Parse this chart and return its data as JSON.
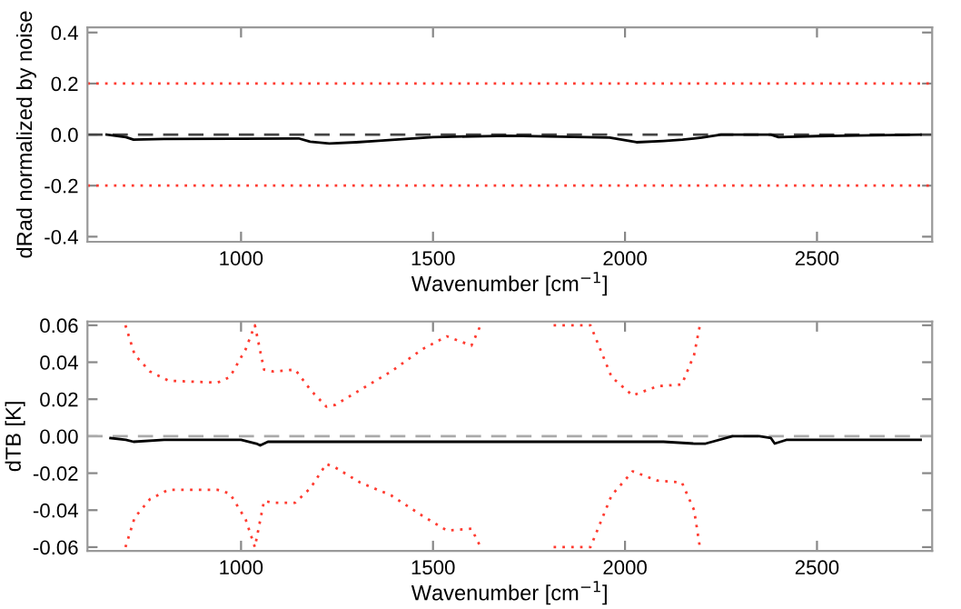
{
  "chart_data": [
    {
      "type": "line",
      "xlabel": "Wavenumber [cm$^{−1}$]",
      "ylabel": "dRad normalized by noise",
      "xlim": [
        600,
        2800
      ],
      "xticks": [
        1000,
        1500,
        2000,
        2500
      ],
      "ylim": [
        -0.42,
        0.42
      ],
      "yticks": [
        {
          "value": -0.4,
          "label": "-0.4"
        },
        {
          "value": -0.2,
          "label": "-0.2"
        },
        {
          "value": 0,
          "label": "0.0"
        },
        0.2,
        0.4
      ],
      "series": [
        {
          "color": "#000000",
          "line_style": "solid",
          "x": [
            650,
            700,
            720,
            800,
            1000,
            1150,
            1180,
            1230,
            1300,
            1350,
            1420,
            1500,
            1600,
            1700,
            1800,
            1900,
            1960,
            2030,
            2100,
            2150,
            2200,
            2250,
            2380,
            2400,
            2500,
            2600,
            2770
          ],
          "values": [
            0,
            -0.01,
            -0.02,
            -0.017,
            -0.016,
            -0.015,
            -0.028,
            -0.035,
            -0.03,
            -0.025,
            -0.018,
            -0.01,
            -0.007,
            -0.005,
            -0.007,
            -0.01,
            -0.012,
            -0.03,
            -0.025,
            -0.02,
            -0.012,
            0,
            0,
            -0.01,
            -0.006,
            -0.004,
            0
          ]
        }
      ],
      "ref_lines": [
        {
          "axis": "y",
          "value": 0.2,
          "color": "#ff3b30",
          "line_style": "dotted"
        },
        {
          "axis": "y",
          "value": -0.2,
          "color": "#ff3b30",
          "line_style": "dotted"
        },
        {
          "axis": "y",
          "value": 0,
          "color": "#444444",
          "line_style": "dashed"
        }
      ]
    },
    {
      "type": "line",
      "xlabel": "Wavenumber [cm$^{−1}$]",
      "ylabel": "dTB [K]",
      "xlim": [
        600,
        2800
      ],
      "xticks": [
        1000,
        1500,
        2000,
        2500
      ],
      "ylim": [
        -0.062,
        0.062
      ],
      "yticks": [
        {
          "value": -0.06,
          "label": "-0.06"
        },
        {
          "value": -0.04,
          "label": "-0.04"
        },
        {
          "value": -0.02,
          "label": "-0.02"
        },
        {
          "value": 0,
          "label": "0.00"
        },
        {
          "value": 0.02,
          "label": "0.02"
        },
        {
          "value": 0.04,
          "label": "0.04"
        },
        {
          "value": 0.06,
          "label": "0.06"
        }
      ],
      "series": [
        {
          "color": "#ff3b30",
          "line_style": "dotted",
          "x": [
            699,
            723,
            763,
            811,
            939,
            971,
            1012,
            1036,
            1060,
            1084,
            1141,
            1181,
            1222,
            1246,
            1310,
            1391,
            1472,
            1536,
            1600,
            1624,
            1700,
            1814,
            1910,
            1965,
            2020,
            2084,
            2148,
            2180,
            2195
          ],
          "values": [
            0.06,
            0.044,
            0.035,
            0.03,
            0.029,
            0.032,
            0.047,
            0.06,
            0.036,
            0.035,
            0.036,
            0.025,
            0.016,
            0.017,
            0.025,
            0.035,
            0.047,
            0.054,
            0.049,
            0.06,
            null,
            0.06,
            0.06,
            0.032,
            0.022,
            0.027,
            0.028,
            0.044,
            0.06
          ]
        },
        {
          "color": "#ff3b30",
          "line_style": "dotted",
          "x": [
            699,
            723,
            763,
            811,
            939,
            971,
            1012,
            1036,
            1060,
            1084,
            1141,
            1181,
            1222,
            1246,
            1310,
            1391,
            1472,
            1536,
            1600,
            1624,
            1700,
            1814,
            1910,
            1965,
            2020,
            2084,
            2148,
            2180,
            2195
          ],
          "values": [
            -0.06,
            -0.044,
            -0.034,
            -0.029,
            -0.029,
            -0.031,
            -0.045,
            -0.06,
            -0.035,
            -0.036,
            -0.036,
            -0.028,
            -0.015,
            -0.017,
            -0.025,
            -0.032,
            -0.043,
            -0.051,
            -0.05,
            -0.06,
            null,
            -0.06,
            -0.06,
            -0.032,
            -0.019,
            -0.024,
            -0.025,
            -0.04,
            -0.06
          ]
        },
        {
          "color": "#000000",
          "line_style": "solid",
          "x": [
            660,
            700,
            720,
            800,
            1000,
            1040,
            1050,
            1070,
            1200,
            1300,
            1500,
            1700,
            1900,
            2100,
            2180,
            2210,
            2280,
            2350,
            2380,
            2390,
            2420,
            2600,
            2770
          ],
          "values": [
            -0.001,
            -0.002,
            -0.003,
            -0.002,
            -0.002,
            -0.004,
            -0.005,
            -0.003,
            -0.003,
            -0.003,
            -0.003,
            -0.003,
            -0.003,
            -0.003,
            -0.004,
            -0.004,
            0,
            0,
            -0.001,
            -0.004,
            -0.002,
            -0.002,
            -0.002
          ]
        }
      ],
      "ref_lines": [
        {
          "axis": "y",
          "value": 0,
          "color": "#aaaaaa",
          "line_style": "dashed"
        }
      ]
    }
  ]
}
